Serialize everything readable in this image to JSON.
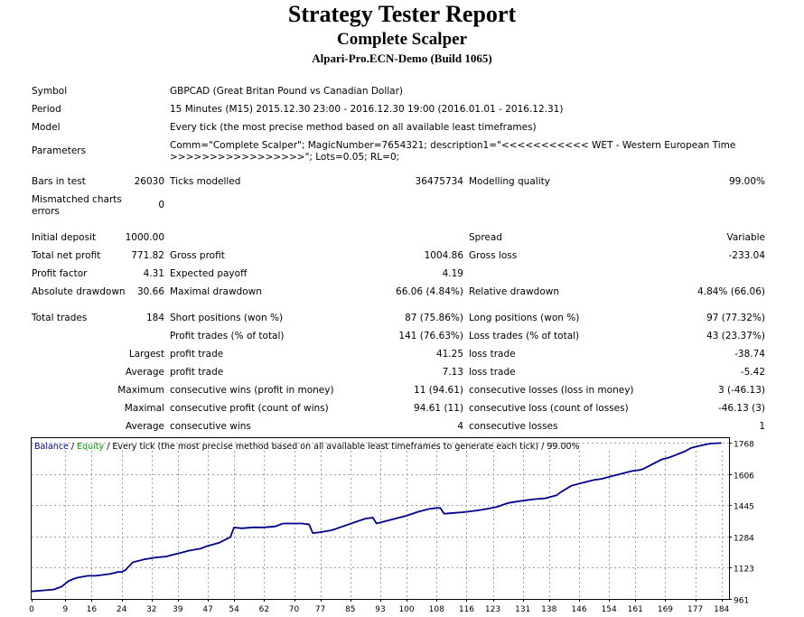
{
  "header": {
    "title": "Strategy Tester Report",
    "subtitle": "Complete Scalper",
    "server": "Alpari-Pro.ECN-Demo (Build 1065)"
  },
  "info": {
    "symbol_label": "Symbol",
    "symbol_value": "GBPCAD (Great Britan Pound vs Canadian Dollar)",
    "period_label": "Period",
    "period_value": "15 Minutes (M15) 2015.12.30 23:00 - 2016.12.30 19:00 (2016.01.01 - 2016.12.31)",
    "model_label": "Model",
    "model_value": "Every tick (the most precise method based on all available least timeframes)",
    "parameters_label": "Parameters",
    "parameters_line1": "Comm=\"Complete Scalper\"; MagicNumber=7654321; description1=\"<<<<<<<<<<< WET - Western European Time",
    "parameters_line2": ">>>>>>>>>>>>>>>>>\"; Lots=0.05; RL=0;"
  },
  "bars": {
    "bars_label": "Bars in test",
    "bars_value": "26030",
    "ticks_label": "Ticks modelled",
    "ticks_value": "36475734",
    "quality_label": "Modelling quality",
    "quality_value": "99.00%",
    "mismatch_label_1": "Mismatched charts",
    "mismatch_label_2": "errors",
    "mismatch_value": "0"
  },
  "results": {
    "initial_deposit_label": "Initial deposit",
    "initial_deposit_value": "1000.00",
    "spread_label": "Spread",
    "spread_value": "Variable",
    "net_profit_label": "Total net profit",
    "net_profit_value": "771.82",
    "gross_profit_label": "Gross profit",
    "gross_profit_value": "1004.86",
    "gross_loss_label": "Gross loss",
    "gross_loss_value": "-233.04",
    "profit_factor_label": "Profit factor",
    "profit_factor_value": "4.31",
    "expected_payoff_label": "Expected payoff",
    "expected_payoff_value": "4.19",
    "abs_dd_label": "Absolute drawdown",
    "abs_dd_value": "30.66",
    "max_dd_label": "Maximal drawdown",
    "max_dd_value": "66.06 (4.84%)",
    "rel_dd_label": "Relative drawdown",
    "rel_dd_value": "4.84% (66.06)"
  },
  "trades": {
    "total_label": "Total trades",
    "total_value": "184",
    "short_label": "Short positions (won %)",
    "short_value": "87 (75.86%)",
    "long_label": "Long positions (won %)",
    "long_value": "97 (77.32%)",
    "profit_trades_label": "Profit trades (% of total)",
    "profit_trades_value": "141 (76.63%)",
    "loss_trades_label": "Loss trades (% of total)",
    "loss_trades_value": "43 (23.37%)",
    "largest_label": "Largest",
    "largest_profit_label": "profit trade",
    "largest_profit_value": "41.25",
    "largest_loss_label": "loss trade",
    "largest_loss_value": "-38.74",
    "average_label": "Average",
    "average_profit_label": "profit trade",
    "average_profit_value": "7.13",
    "average_loss_label": "loss trade",
    "average_loss_value": "-5.42",
    "maximum_label": "Maximum",
    "max_cons_wins_label": "consecutive wins (profit in money)",
    "max_cons_wins_value": "11 (94.61)",
    "max_cons_losses_label": "consecutive losses (loss in money)",
    "max_cons_losses_value": "3 (-46.13)",
    "maximal_label": "Maximal",
    "maximal_profit_label": "consecutive profit (count of wins)",
    "maximal_profit_value": "94.61 (11)",
    "maximal_loss_label": "consecutive loss (count of losses)",
    "maximal_loss_value": "-46.13 (3)",
    "average2_label": "Average",
    "avg_cons_wins_label": "consecutive wins",
    "avg_cons_wins_value": "4",
    "avg_cons_losses_label": "consecutive losses",
    "avg_cons_losses_value": "1"
  },
  "chart_data": {
    "type": "line",
    "legend": {
      "balance": "Balance",
      "sep": " / ",
      "equity": "Equity",
      "rest": " / Every tick (the most precise method based on all available least timeframes to generate each tick) / 99.00%"
    },
    "colors": {
      "balance": "#00008b",
      "equity": "#00a000",
      "grid": "#9aa0a8",
      "frame": "#000000"
    },
    "xlim": [
      0,
      186
    ],
    "ylim": [
      961,
      1790
    ],
    "x_ticks": [
      0,
      9,
      16,
      24,
      32,
      39,
      47,
      54,
      62,
      70,
      77,
      85,
      93,
      100,
      108,
      116,
      123,
      131,
      138,
      146,
      154,
      161,
      169,
      177,
      184
    ],
    "y_ticks": [
      961,
      1123,
      1284,
      1445,
      1606,
      1768
    ],
    "grid": true,
    "series": [
      {
        "name": "Balance",
        "x": [
          0,
          3,
          6,
          8,
          10,
          12,
          15,
          17,
          19,
          21,
          23,
          24,
          25,
          27,
          30,
          33,
          36,
          38,
          40,
          42,
          45,
          47,
          50,
          52,
          53,
          54,
          56,
          59,
          62,
          65,
          67,
          70,
          72,
          74,
          75,
          77,
          80,
          83,
          86,
          89,
          91,
          92,
          93,
          95,
          98,
          100,
          103,
          106,
          108,
          109,
          110,
          113,
          116,
          120,
          124,
          127,
          130,
          132,
          134,
          137,
          139,
          140,
          141,
          144,
          147,
          150,
          152,
          154,
          156,
          158,
          160,
          162,
          163,
          165,
          167,
          168,
          170,
          172,
          174,
          176,
          178,
          180,
          181,
          184
        ],
        "y": [
          1000,
          1005,
          1010,
          1025,
          1055,
          1070,
          1080,
          1080,
          1085,
          1090,
          1100,
          1100,
          1110,
          1150,
          1165,
          1175,
          1180,
          1190,
          1200,
          1210,
          1220,
          1235,
          1250,
          1270,
          1280,
          1330,
          1325,
          1330,
          1330,
          1335,
          1350,
          1350,
          1350,
          1345,
          1300,
          1305,
          1315,
          1335,
          1355,
          1375,
          1380,
          1350,
          1355,
          1365,
          1380,
          1390,
          1410,
          1425,
          1430,
          1430,
          1400,
          1405,
          1410,
          1420,
          1435,
          1455,
          1465,
          1470,
          1475,
          1480,
          1490,
          1495,
          1510,
          1545,
          1560,
          1575,
          1580,
          1590,
          1600,
          1610,
          1620,
          1625,
          1630,
          1650,
          1670,
          1680,
          1690,
          1705,
          1720,
          1740,
          1750,
          1758,
          1762,
          1765
        ]
      }
    ]
  }
}
